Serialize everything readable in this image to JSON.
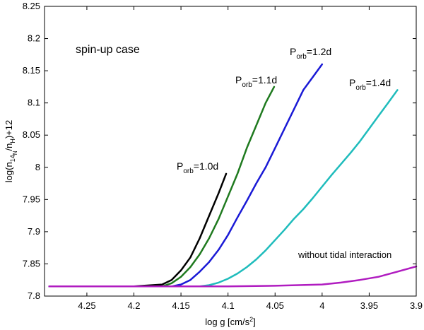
{
  "chart_data": {
    "type": "line",
    "title": "",
    "xlabel": "log g [cm/s",
    "xlabel_sup": "2",
    "xlabel_end": "]",
    "ylabel": "log(n",
    "ylabel_sub1": "14",
    "ylabel_mid1": "/n",
    "ylabel_sub2": "H",
    "ylabel_end": ")+12",
    "ylabel_sub1_sub": "N",
    "xlim": [
      4.295,
      3.9
    ],
    "ylim": [
      7.8,
      8.25
    ],
    "x_reversed": true,
    "xticks": [
      4.25,
      4.2,
      4.15,
      4.1,
      4.05,
      4.0,
      3.95,
      3.9
    ],
    "xtick_labels": [
      "4.25",
      "4.2",
      "4.15",
      "4.1",
      "4.05",
      "4",
      "3.95",
      "3.9"
    ],
    "yticks": [
      7.8,
      7.85,
      7.9,
      7.95,
      8.0,
      8.05,
      8.1,
      8.15,
      8.2,
      8.25
    ],
    "ytick_labels": [
      "7.8",
      "7.85",
      "7.9",
      "7.95",
      "8",
      "8.05",
      "8.1",
      "8.15",
      "8.2",
      "8.25"
    ],
    "grid": false,
    "case_label": "spin-up case",
    "series": [
      {
        "name": "P_orb=1.0d",
        "label_main": "P",
        "label_sub": "orb",
        "label_value": "=1.0d",
        "color": "#000000",
        "x": [
          4.29,
          4.2,
          4.17,
          4.16,
          4.15,
          4.14,
          4.13,
          4.12,
          4.11,
          4.102
        ],
        "y": [
          7.815,
          7.815,
          7.818,
          7.825,
          7.84,
          7.86,
          7.89,
          7.925,
          7.96,
          7.99
        ]
      },
      {
        "name": "P_orb=1.1d",
        "label_main": "P",
        "label_sub": "orb",
        "label_value": "=1.1d",
        "color": "#1f7a1f",
        "x": [
          4.29,
          4.17,
          4.16,
          4.15,
          4.14,
          4.13,
          4.12,
          4.11,
          4.1,
          4.09,
          4.08,
          4.07,
          4.06,
          4.051
        ],
        "y": [
          7.815,
          7.815,
          7.82,
          7.83,
          7.845,
          7.865,
          7.89,
          7.92,
          7.955,
          7.99,
          8.03,
          8.065,
          8.1,
          8.125
        ]
      },
      {
        "name": "P_orb=1.2d",
        "label_main": "P",
        "label_sub": "orb",
        "label_value": "=1.2d",
        "color": "#1a1ad6",
        "x": [
          4.29,
          4.16,
          4.15,
          4.14,
          4.13,
          4.12,
          4.11,
          4.1,
          4.09,
          4.08,
          4.07,
          4.06,
          4.05,
          4.04,
          4.03,
          4.02,
          4.01,
          4.0
        ],
        "y": [
          7.815,
          7.815,
          7.818,
          7.825,
          7.838,
          7.853,
          7.872,
          7.895,
          7.922,
          7.948,
          7.975,
          8.0,
          8.03,
          8.06,
          8.09,
          8.12,
          8.14,
          8.16
        ]
      },
      {
        "name": "P_orb=1.4d",
        "label_main": "P",
        "label_sub": "orb",
        "label_value": "=1.4d",
        "color": "#1fbcbc",
        "x": [
          4.29,
          4.13,
          4.12,
          4.11,
          4.1,
          4.09,
          4.08,
          4.07,
          4.06,
          4.05,
          4.04,
          4.03,
          4.02,
          4.01,
          4.0,
          3.99,
          3.98,
          3.97,
          3.96,
          3.95,
          3.94,
          3.93,
          3.92
        ],
        "y": [
          7.815,
          7.815,
          7.817,
          7.821,
          7.827,
          7.835,
          7.845,
          7.857,
          7.871,
          7.887,
          7.903,
          7.92,
          7.935,
          7.952,
          7.97,
          7.988,
          8.005,
          8.022,
          8.04,
          8.06,
          8.08,
          8.1,
          8.12
        ]
      },
      {
        "name": "without tidal interaction",
        "label_main": "without tidal interaction",
        "label_sub": "",
        "label_value": "",
        "color": "#b01cc0",
        "x": [
          4.29,
          4.2,
          4.1,
          4.05,
          4.0,
          3.98,
          3.96,
          3.94,
          3.92,
          3.9
        ],
        "y": [
          7.815,
          7.815,
          7.815,
          7.816,
          7.818,
          7.821,
          7.825,
          7.83,
          7.838,
          7.846
        ]
      }
    ]
  }
}
